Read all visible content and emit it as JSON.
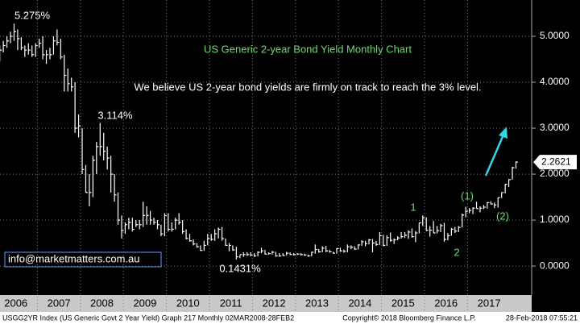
{
  "chart_data": {
    "type": "ohlc",
    "title": "US Generic 2-year Bond Yield Monthly Chart",
    "subtitle": "We believe US 2-year bond yields are firmly on track to reach the 3% level.",
    "categories": [
      null,
      null,
      null,
      null,
      null,
      null,
      "2006",
      null,
      null,
      null,
      null,
      null,
      null,
      null,
      null,
      null,
      null,
      null,
      "2007",
      null,
      null,
      null,
      null,
      null,
      null,
      null,
      null,
      null,
      null,
      null,
      "2008",
      null,
      null,
      null,
      null,
      null,
      null,
      null,
      null,
      null,
      null,
      null,
      "2009",
      null,
      null,
      null,
      null,
      null,
      null,
      null,
      null,
      null,
      null,
      null,
      "2010",
      null,
      null,
      null,
      null,
      null,
      null,
      null,
      null,
      null,
      null,
      null,
      "2011",
      null,
      null,
      null,
      null,
      null,
      null,
      null,
      null,
      null,
      null,
      null,
      "2012",
      null,
      null,
      null,
      null,
      null,
      null,
      null,
      null,
      null,
      null,
      null,
      "2013",
      null,
      null,
      null,
      null,
      null,
      null,
      null,
      null,
      null,
      null,
      null,
      "2014",
      null,
      null,
      null,
      null,
      null,
      null,
      null,
      null,
      null,
      null,
      null,
      "2015",
      null,
      null,
      null,
      null,
      null,
      null,
      null,
      null,
      null,
      null,
      null,
      "2016",
      null,
      null,
      null,
      null,
      null,
      null,
      null,
      null,
      null,
      null,
      null,
      "2017",
      null,
      null,
      null,
      null,
      null,
      null,
      null
    ],
    "high": [
      4.6,
      4.8,
      4.9,
      5.0,
      5.1,
      5.275,
      5.15,
      4.98,
      4.8,
      4.85,
      4.8,
      4.85,
      4.95,
      5.0,
      4.7,
      4.75,
      5.0,
      5.15,
      4.95,
      4.6,
      4.3,
      4.1,
      4.0,
      3.3,
      3.0,
      2.2,
      2.0,
      2.4,
      2.7,
      3.114,
      2.9,
      2.6,
      2.4,
      2.0,
      1.6,
      1.1,
      0.95,
      1.05,
      1.05,
      1.0,
      1.0,
      1.4,
      1.3,
      1.2,
      1.05,
      1.0,
      0.9,
      1.15,
      1.15,
      0.95,
      1.05,
      1.15,
      1.0,
      0.8,
      0.7,
      0.58,
      0.5,
      0.45,
      0.55,
      0.7,
      0.7,
      0.8,
      0.84,
      0.85,
      0.6,
      0.5,
      0.45,
      0.42,
      0.24,
      0.3,
      0.3,
      0.3,
      0.28,
      0.32,
      0.4,
      0.35,
      0.3,
      0.33,
      0.31,
      0.28,
      0.28,
      0.31,
      0.3,
      0.28,
      0.28,
      0.28,
      0.27,
      0.25,
      0.31,
      0.47,
      0.37,
      0.43,
      0.44,
      0.35,
      0.31,
      0.39,
      0.4,
      0.36,
      0.47,
      0.45,
      0.43,
      0.47,
      0.56,
      0.55,
      0.59,
      0.59,
      0.55,
      0.74,
      0.68,
      0.67,
      0.73,
      0.6,
      0.65,
      0.74,
      0.74,
      0.78,
      0.82,
      0.76,
      0.94,
      1.1,
      1.06,
      0.87,
      0.98,
      0.87,
      0.92,
      0.94,
      0.72,
      0.83,
      0.85,
      0.87,
      1.14,
      1.29,
      1.26,
      1.28,
      1.4,
      1.3,
      1.33,
      1.39,
      1.41,
      1.38,
      1.49,
      1.6,
      1.78,
      1.89,
      2.16,
      2.28
    ],
    "low": [
      4.3,
      4.45,
      4.65,
      4.75,
      4.85,
      4.9,
      4.7,
      4.7,
      4.55,
      4.6,
      4.55,
      4.55,
      4.75,
      4.5,
      4.4,
      4.5,
      4.6,
      4.8,
      4.5,
      3.8,
      3.8,
      3.8,
      2.9,
      2.8,
      2.0,
      1.6,
      1.3,
      1.5,
      2.0,
      2.4,
      2.3,
      2.1,
      1.6,
      1.4,
      0.9,
      0.6,
      0.7,
      0.8,
      0.75,
      0.85,
      0.8,
      0.85,
      0.9,
      0.9,
      0.9,
      0.8,
      0.65,
      0.65,
      0.75,
      0.75,
      0.8,
      0.9,
      0.7,
      0.58,
      0.53,
      0.45,
      0.4,
      0.33,
      0.33,
      0.45,
      0.55,
      0.55,
      0.6,
      0.55,
      0.44,
      0.32,
      0.33,
      0.1431,
      0.17,
      0.2,
      0.22,
      0.21,
      0.2,
      0.21,
      0.28,
      0.25,
      0.25,
      0.25,
      0.2,
      0.2,
      0.22,
      0.23,
      0.24,
      0.23,
      0.24,
      0.23,
      0.22,
      0.2,
      0.21,
      0.27,
      0.29,
      0.3,
      0.3,
      0.29,
      0.27,
      0.27,
      0.31,
      0.29,
      0.3,
      0.37,
      0.35,
      0.36,
      0.44,
      0.43,
      0.47,
      0.3,
      0.44,
      0.46,
      0.43,
      0.44,
      0.53,
      0.48,
      0.56,
      0.6,
      0.61,
      0.59,
      0.62,
      0.52,
      0.71,
      0.87,
      0.76,
      0.64,
      0.72,
      0.71,
      0.74,
      0.53,
      0.56,
      0.66,
      0.72,
      0.74,
      0.84,
      1.06,
      1.15,
      1.13,
      1.25,
      1.17,
      1.24,
      1.25,
      1.34,
      1.26,
      1.27,
      1.48,
      1.58,
      1.72,
      1.88,
      2.12
    ],
    "close": [
      4.4,
      4.7,
      4.8,
      4.9,
      5.0,
      5.1,
      4.95,
      4.75,
      4.7,
      4.7,
      4.6,
      4.8,
      4.85,
      4.6,
      4.6,
      4.6,
      4.9,
      4.87,
      4.55,
      4.15,
      3.97,
      3.9,
      3.0,
      3.05,
      2.1,
      1.6,
      1.6,
      2.3,
      2.6,
      2.6,
      2.5,
      2.35,
      2.0,
      1.55,
      1.0,
      0.77,
      0.9,
      0.95,
      0.8,
      0.9,
      0.9,
      1.1,
      1.1,
      1.0,
      0.95,
      0.9,
      0.7,
      1.1,
      0.8,
      0.8,
      1.0,
      0.95,
      0.75,
      0.6,
      0.55,
      0.48,
      0.42,
      0.34,
      0.45,
      0.6,
      0.58,
      0.7,
      0.8,
      0.6,
      0.45,
      0.45,
      0.35,
      0.2,
      0.25,
      0.25,
      0.25,
      0.24,
      0.22,
      0.3,
      0.33,
      0.26,
      0.27,
      0.3,
      0.22,
      0.22,
      0.23,
      0.28,
      0.25,
      0.25,
      0.26,
      0.25,
      0.24,
      0.22,
      0.3,
      0.36,
      0.31,
      0.39,
      0.33,
      0.31,
      0.28,
      0.38,
      0.33,
      0.32,
      0.42,
      0.41,
      0.37,
      0.46,
      0.53,
      0.49,
      0.57,
      0.5,
      0.47,
      0.66,
      0.45,
      0.62,
      0.56,
      0.57,
      0.61,
      0.64,
      0.67,
      0.74,
      0.64,
      0.72,
      0.94,
      1.05,
      0.78,
      0.78,
      0.72,
      0.77,
      0.88,
      0.58,
      0.66,
      0.8,
      0.76,
      0.84,
      1.11,
      1.19,
      1.21,
      1.26,
      1.25,
      1.26,
      1.28,
      1.38,
      1.35,
      1.33,
      1.49,
      1.6,
      1.78,
      1.88,
      2.14,
      2.2621
    ],
    "color": "#ffffff",
    "ylim": [
      -0.63,
      5.79
    ],
    "yticks": [
      {
        "value": 0,
        "label": "0.0000"
      },
      {
        "value": 1,
        "label": "1.0000"
      },
      {
        "value": 2,
        "label": "2.0000"
      },
      {
        "value": 3,
        "label": "3.0000"
      },
      {
        "value": 4,
        "label": "4.0000"
      },
      {
        "value": 5,
        "label": "5.0000"
      }
    ],
    "grid": true,
    "annotations": [
      "5.275%",
      "3.114%",
      "0.1431%",
      "1",
      "2",
      "(1)",
      "(2)"
    ],
    "contact": "info@marketmatters.com.au",
    "footer": [
      "USGG2YR Index (US Generic Govt 2 Year Yield) Graph 217  Monthly 02MAR2008-28FEB2",
      "Copyright© 2018 Bloomberg Finance L.P.",
      "28-Feb-2018 07:55:21"
    ]
  }
}
